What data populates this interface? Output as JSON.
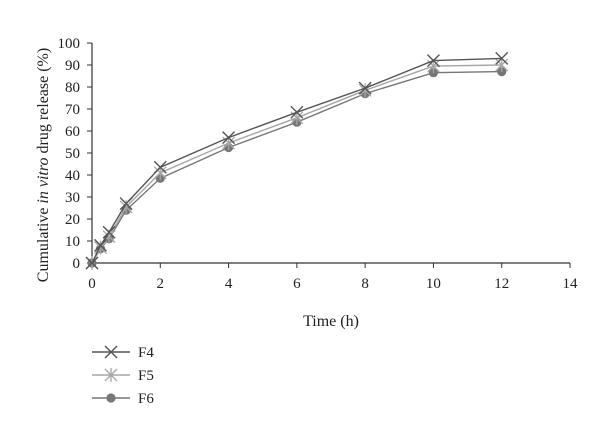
{
  "chart_data": {
    "type": "line",
    "xlabel": "Time (h)",
    "ylabel_prefix": "Cumulative ",
    "ylabel_italic": "in vitro",
    "ylabel_suffix": " drug release (%)",
    "xlim": [
      0,
      14
    ],
    "ylim": [
      0,
      100
    ],
    "xticks": [
      "0",
      "2",
      "4",
      "6",
      "8",
      "10",
      "12",
      "14"
    ],
    "yticks": [
      "0",
      "10",
      "20",
      "30",
      "40",
      "50",
      "60",
      "70",
      "80",
      "90",
      "100"
    ],
    "grid": false,
    "legend_position": "bottom-left",
    "x": [
      0,
      0.25,
      0.5,
      1,
      2,
      4,
      6,
      8,
      10,
      12
    ],
    "series": [
      {
        "name": "F4",
        "marker": "x",
        "color": "#555555",
        "values": [
          0,
          8,
          14,
          27,
          43.5,
          57,
          68.5,
          79.5,
          92,
          93
        ]
      },
      {
        "name": "F5",
        "marker": "star",
        "color": "#a6a6a6",
        "values": [
          0,
          7,
          12,
          25.5,
          41,
          54.5,
          66,
          78.5,
          89.5,
          90
        ]
      },
      {
        "name": "F6",
        "marker": "circle",
        "color": "#777777",
        "values": [
          0,
          6.5,
          11,
          24,
          38.5,
          52.5,
          64,
          77,
          86.5,
          87
        ]
      }
    ]
  }
}
